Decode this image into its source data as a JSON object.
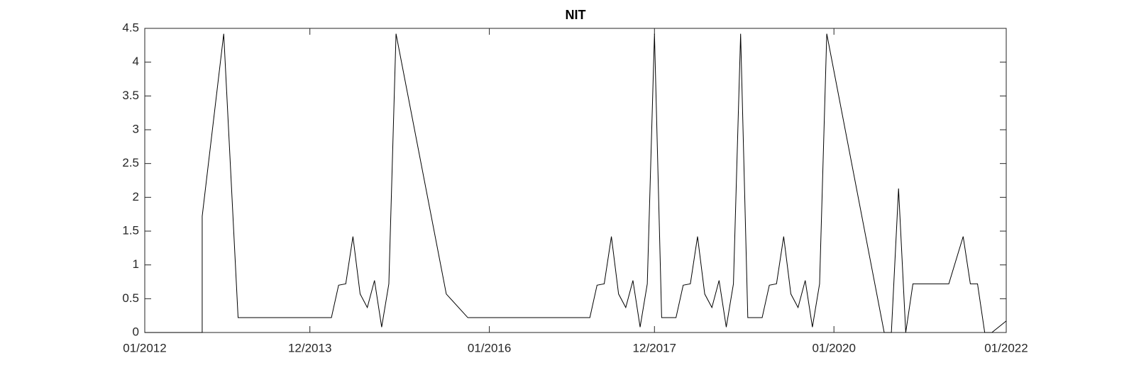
{
  "chart_data": {
    "type": "line",
    "title": "NIT",
    "x": [
      "2012-01",
      "2012-09",
      "2012-09",
      "2012-12",
      "2013-02",
      "2014-03",
      "2014-04",
      "2014-05",
      "2014-06",
      "2014-07",
      "2014-08",
      "2014-09",
      "2014-10",
      "2014-11",
      "2014-12",
      "2015-07",
      "2015-10",
      "2017-03",
      "2017-04",
      "2017-05",
      "2017-06",
      "2017-07",
      "2017-08",
      "2017-09",
      "2017-10",
      "2017-11",
      "2017-12",
      "2018-01",
      "2018-03",
      "2018-04",
      "2018-05",
      "2018-06",
      "2018-07",
      "2018-08",
      "2018-09",
      "2018-10",
      "2018-11",
      "2018-12",
      "2019-01",
      "2019-03",
      "2019-04",
      "2019-05",
      "2019-06",
      "2019-07",
      "2019-08",
      "2019-09",
      "2019-10",
      "2019-11",
      "2019-12",
      "2020-08",
      "2020-09",
      "2020-10",
      "2020-11",
      "2020-12",
      "2021-05",
      "2021-07",
      "2021-08",
      "2021-09",
      "2021-10",
      "2021-11",
      "2022-01"
    ],
    "series": [
      {
        "color": "#000000",
        "values": [
          0,
          0,
          1.72,
          4.42,
          0.22,
          0.22,
          0.7,
          0.72,
          1.42,
          0.57,
          0.37,
          0.77,
          0.08,
          0.72,
          4.42,
          0.57,
          0.22,
          0.22,
          0.7,
          0.72,
          1.42,
          0.57,
          0.37,
          0.77,
          0.08,
          0.72,
          4.42,
          0.22,
          0.22,
          0.7,
          0.72,
          1.42,
          0.57,
          0.37,
          0.77,
          0.08,
          0.72,
          4.42,
          0.22,
          0.22,
          0.7,
          0.72,
          1.42,
          0.57,
          0.37,
          0.77,
          0.08,
          0.72,
          4.42,
          0,
          0,
          2.13,
          0,
          0.72,
          0.72,
          1.42,
          0.72,
          0.72,
          0,
          0,
          0.17
        ]
      }
    ],
    "xlim": [
      "2012-01",
      "2022-01"
    ],
    "xticks": [
      {
        "value": "2012-01",
        "label": "01/2012"
      },
      {
        "value": "2013-12",
        "label": "12/2013"
      },
      {
        "value": "2016-01",
        "label": "01/2016"
      },
      {
        "value": "2017-12",
        "label": "12/2017"
      },
      {
        "value": "2020-01",
        "label": "01/2020"
      },
      {
        "value": "2022-01",
        "label": "01/2022"
      }
    ],
    "ylim": [
      0,
      4.5
    ],
    "yticks": [
      0,
      0.5,
      1,
      1.5,
      2,
      2.5,
      3,
      3.5,
      4,
      4.5
    ]
  }
}
